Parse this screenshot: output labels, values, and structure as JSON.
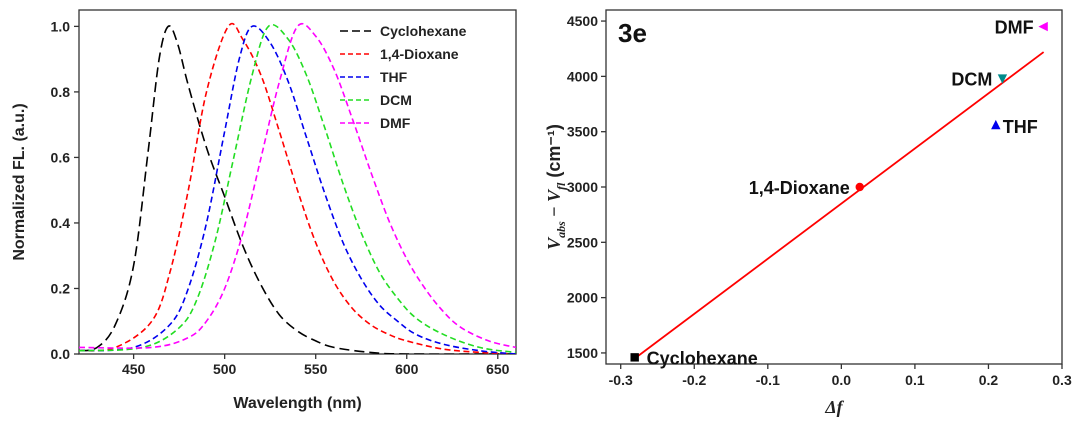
{
  "chart_data": [
    {
      "type": "line",
      "xlabel": "Wavelength (nm)",
      "ylabel": "Normalized FL. (a.u.)",
      "xlim": [
        420,
        660
      ],
      "ylim": [
        0.0,
        1.05
      ],
      "xticks": [
        "450",
        "500",
        "550",
        "600",
        "650"
      ],
      "yticks": [
        "0.0",
        "0.2",
        "0.4",
        "0.6",
        "0.8",
        "1.0"
      ],
      "legend_position": "top-right",
      "series": [
        {
          "name": "Cyclohexane",
          "color": "#000000",
          "peak": 469,
          "values": [
            [
              420,
              0.01
            ],
            [
              430,
              0.02
            ],
            [
              440,
              0.09
            ],
            [
              450,
              0.27
            ],
            [
              458,
              0.62
            ],
            [
              464,
              0.9
            ],
            [
              469,
              1.0
            ],
            [
              474,
              0.95
            ],
            [
              480,
              0.82
            ],
            [
              490,
              0.63
            ],
            [
              500,
              0.48
            ],
            [
              510,
              0.33
            ],
            [
              520,
              0.21
            ],
            [
              530,
              0.12
            ],
            [
              540,
              0.07
            ],
            [
              550,
              0.04
            ],
            [
              560,
              0.02
            ],
            [
              580,
              0.005
            ],
            [
              600,
              0.0
            ],
            [
              660,
              0.0
            ]
          ]
        },
        {
          "name": "1,4-Dioxane",
          "color": "#ff0000",
          "peak": 502,
          "values": [
            [
              420,
              0.01
            ],
            [
              440,
              0.02
            ],
            [
              460,
              0.1
            ],
            [
              470,
              0.25
            ],
            [
              480,
              0.5
            ],
            [
              490,
              0.8
            ],
            [
              502,
              1.0
            ],
            [
              510,
              0.96
            ],
            [
              520,
              0.85
            ],
            [
              530,
              0.68
            ],
            [
              540,
              0.5
            ],
            [
              550,
              0.34
            ],
            [
              560,
              0.22
            ],
            [
              570,
              0.14
            ],
            [
              580,
              0.09
            ],
            [
              590,
              0.06
            ],
            [
              600,
              0.04
            ],
            [
              620,
              0.015
            ],
            [
              640,
              0.005
            ],
            [
              660,
              0.0
            ]
          ]
        },
        {
          "name": "THF",
          "color": "#0000ee",
          "peak": 515,
          "values": [
            [
              420,
              0.01
            ],
            [
              450,
              0.02
            ],
            [
              470,
              0.09
            ],
            [
              480,
              0.2
            ],
            [
              490,
              0.4
            ],
            [
              500,
              0.68
            ],
            [
              508,
              0.9
            ],
            [
              515,
              1.0
            ],
            [
              525,
              0.95
            ],
            [
              535,
              0.83
            ],
            [
              545,
              0.66
            ],
            [
              555,
              0.49
            ],
            [
              565,
              0.34
            ],
            [
              575,
              0.23
            ],
            [
              585,
              0.15
            ],
            [
              595,
              0.1
            ],
            [
              605,
              0.06
            ],
            [
              620,
              0.03
            ],
            [
              640,
              0.01
            ],
            [
              660,
              0.0
            ]
          ]
        },
        {
          "name": "DCM",
          "color": "#22dd22",
          "peak": 524,
          "values": [
            [
              420,
              0.01
            ],
            [
              455,
              0.02
            ],
            [
              475,
              0.08
            ],
            [
              485,
              0.17
            ],
            [
              495,
              0.35
            ],
            [
              505,
              0.6
            ],
            [
              515,
              0.85
            ],
            [
              524,
              1.0
            ],
            [
              535,
              0.96
            ],
            [
              545,
              0.85
            ],
            [
              555,
              0.69
            ],
            [
              565,
              0.52
            ],
            [
              575,
              0.37
            ],
            [
              585,
              0.25
            ],
            [
              595,
              0.17
            ],
            [
              605,
              0.11
            ],
            [
              620,
              0.06
            ],
            [
              640,
              0.02
            ],
            [
              660,
              0.005
            ]
          ]
        },
        {
          "name": "DMF",
          "color": "#ff00ff",
          "peak": 540,
          "values": [
            [
              420,
              0.02
            ],
            [
              460,
              0.02
            ],
            [
              480,
              0.05
            ],
            [
              490,
              0.1
            ],
            [
              500,
              0.2
            ],
            [
              510,
              0.37
            ],
            [
              520,
              0.6
            ],
            [
              530,
              0.83
            ],
            [
              540,
              1.0
            ],
            [
              550,
              0.97
            ],
            [
              560,
              0.87
            ],
            [
              570,
              0.72
            ],
            [
              580,
              0.56
            ],
            [
              590,
              0.41
            ],
            [
              600,
              0.29
            ],
            [
              610,
              0.2
            ],
            [
              620,
              0.13
            ],
            [
              630,
              0.08
            ],
            [
              645,
              0.04
            ],
            [
              660,
              0.02
            ]
          ]
        }
      ]
    },
    {
      "type": "scatter",
      "panel_label": "3e",
      "xlabel": "Δf",
      "ylabel_main": "V",
      "ylabel_sub1": "abs",
      "ylabel_dash": " − ",
      "ylabel_sub2": "fl",
      "ylabel_unit": " (cm⁻¹)",
      "xlim": [
        -0.32,
        0.3
      ],
      "ylim": [
        1400,
        4600
      ],
      "xticks": [
        "-0.3",
        "-0.2",
        "-0.1",
        "0.0",
        "0.1",
        "0.2",
        "0.3"
      ],
      "yticks": [
        "1500",
        "2000",
        "2500",
        "3000",
        "3500",
        "4000",
        "4500"
      ],
      "points": [
        {
          "label": "Cyclohexane",
          "x": -0.281,
          "y": 1460,
          "color": "#000000",
          "marker": "square"
        },
        {
          "label": "1,4-Dioxane",
          "x": 0.025,
          "y": 3000,
          "color": "#ff0000",
          "marker": "circle"
        },
        {
          "label": "THF",
          "x": 0.21,
          "y": 3560,
          "color": "#0000ee",
          "marker": "triangle-up"
        },
        {
          "label": "DCM",
          "x": 0.219,
          "y": 3980,
          "color": "#008b8b",
          "marker": "triangle-down"
        },
        {
          "label": "DMF",
          "x": 0.275,
          "y": 4450,
          "color": "#ff00ff",
          "marker": "triangle-left"
        }
      ],
      "fit_line": {
        "color": "#ff0000",
        "x": [
          -0.281,
          0.275
        ],
        "y": [
          1450,
          4220
        ]
      }
    }
  ]
}
